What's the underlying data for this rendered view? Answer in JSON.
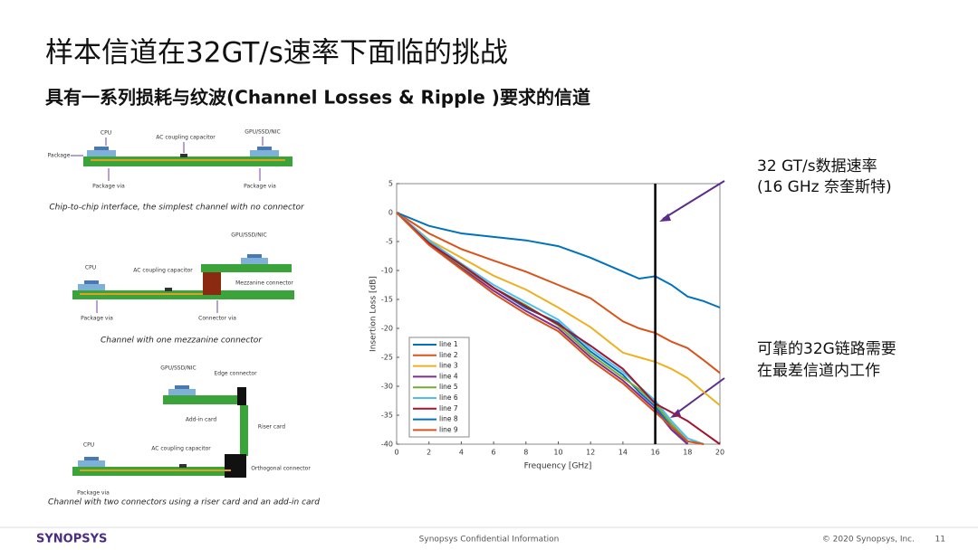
{
  "header": {
    "title": "样本信道在32GT/s速率下面临的挑战",
    "subtitle": "具有一系列损耗与纹波(Channel Losses & Ripple )要求的信道"
  },
  "diagrams": [
    {
      "labels": [
        "CPU",
        "AC coupling capacitor",
        "GPU/SSD/NIC",
        "Package",
        "Package via",
        "Package via"
      ],
      "caption": "Chip-to-chip interface, the simplest channel with no connector"
    },
    {
      "labels": [
        "GPU/SSD/NIC",
        "CPU",
        "AC coupling capacitor",
        "Mezzanine connector",
        "Package via",
        "Connector via"
      ],
      "caption": "Channel with one mezzanine connector"
    },
    {
      "labels": [
        "GPU/SSD/NIC",
        "Edge connector",
        "Add-in card",
        "Riser card",
        "CPU",
        "AC coupling capacitor",
        "Orthogonal connector",
        "Package via"
      ],
      "caption": "Channel with two connectors using a riser card and an add-in card"
    }
  ],
  "chart_data": {
    "type": "line",
    "xlabel": "Frequency [GHz]",
    "ylabel": "Insertion Loss [dB]",
    "x": [
      0,
      2,
      4,
      6,
      8,
      10,
      12,
      14,
      15,
      16,
      17,
      18,
      19,
      20
    ],
    "xlim": [
      0,
      20
    ],
    "ylim": [
      -40,
      5
    ],
    "xticks": [
      0,
      2,
      4,
      6,
      8,
      10,
      12,
      14,
      16,
      18,
      20
    ],
    "yticks": [
      5,
      0,
      -5,
      -10,
      -15,
      -20,
      -25,
      -30,
      -35,
      -40
    ],
    "marker_x": 16,
    "legend": "upper-left",
    "series": [
      {
        "name": "line 1",
        "color": "#0072bd",
        "values": [
          0,
          -5,
          -9,
          -13,
          -16.5,
          -19,
          -24,
          -28,
          -31,
          -33.5,
          -37,
          -40,
          null,
          null
        ]
      },
      {
        "name": "line 2",
        "color": "#d95319",
        "values": [
          0,
          -3.6,
          -6.3,
          -8.3,
          -10.2,
          -12.5,
          -14.8,
          -18.8,
          -20,
          -20.8,
          -22.3,
          -23.4,
          -25.5,
          -27.7
        ]
      },
      {
        "name": "line 3",
        "color": "#edb120",
        "values": [
          0,
          -4.7,
          -7.8,
          -10.9,
          -13.3,
          -16.4,
          -19.8,
          -24.2,
          -25,
          -25.8,
          -27,
          -28.6,
          -31,
          -33.3
        ]
      },
      {
        "name": "line 4",
        "color": "#7e2f8e",
        "values": [
          0,
          -5.5,
          -9.5,
          -13.5,
          -17,
          -20,
          -25,
          -29,
          -31.5,
          -34,
          -37.5,
          -40,
          null,
          null
        ]
      },
      {
        "name": "line 5",
        "color": "#77ac30",
        "values": [
          0,
          -5.2,
          -9.2,
          -13,
          -16,
          -19.5,
          -24.5,
          -28.5,
          -30.5,
          -33,
          -36.5,
          -39.5,
          -40,
          null
        ]
      },
      {
        "name": "line 6",
        "color": "#4dbeee",
        "values": [
          0,
          -4.8,
          -8.8,
          -12.5,
          -15.5,
          -18.5,
          -23.5,
          -27.5,
          -30,
          -32.5,
          -36,
          -39,
          -40,
          null
        ]
      },
      {
        "name": "line 7",
        "color": "#a2142f",
        "values": [
          0,
          -5.3,
          -9,
          -13,
          -16.2,
          -19.3,
          -23,
          -27,
          -30,
          -33,
          -34.5,
          -36,
          -38,
          -40
        ]
      },
      {
        "name": "line 8",
        "color": "#0072bd",
        "values": [
          0,
          -2.3,
          -3.6,
          -4.2,
          -4.8,
          -5.8,
          -7.8,
          -10.2,
          -11.4,
          -11,
          -12.5,
          -14.5,
          -15.3,
          -16.4
        ]
      },
      {
        "name": "line 9",
        "color": "#d95319",
        "values": [
          0,
          -5.6,
          -9.8,
          -14,
          -17.5,
          -20.5,
          -25.5,
          -29.5,
          -32,
          -34.5,
          -37,
          -39.5,
          -40,
          null
        ]
      }
    ],
    "annotations": [
      "32 GT/s数据速率",
      "(16 GHz 奈奎斯特)",
      "可靠的32G链路需要",
      "在最差信道内工作"
    ]
  },
  "footer": {
    "logo": "SYNOPSYS",
    "center": "Synopsys Confidential Information",
    "copyright": "© 2020 Synopsys, Inc.",
    "page": "11"
  }
}
